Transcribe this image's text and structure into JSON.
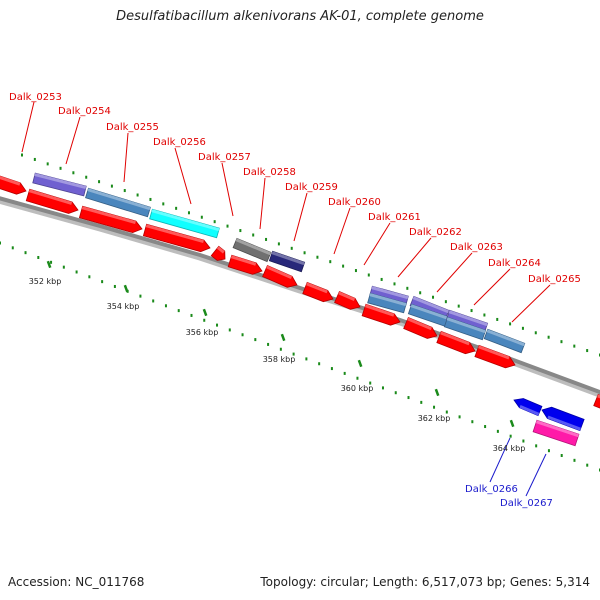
{
  "title": "Desulfatibacillum alkenivorans AK-01, complete genome",
  "footer": {
    "accession": "Accession: NC_011768",
    "summary": "Topology: circular; Length: 6,517,073 bp; Genes: 5,314"
  },
  "ticks": [
    "352 kbp",
    "354 kbp",
    "356 kbp",
    "358 kbp",
    "360 kbp",
    "362 kbp",
    "364 kbp"
  ],
  "gene_labels_red": [
    "Dalk_0253",
    "Dalk_0254",
    "Dalk_0255",
    "Dalk_0256",
    "Dalk_0257",
    "Dalk_0258",
    "Dalk_0259",
    "Dalk_0260",
    "Dalk_0261",
    "Dalk_0262",
    "Dalk_0263",
    "Dalk_0264",
    "Dalk_0265"
  ],
  "gene_labels_blue": [
    "Dalk_0266",
    "Dalk_0267"
  ],
  "colors": {
    "forward_cds": "#ff0000",
    "reverse_cds": "#0000ee",
    "label_red": "#e00000",
    "label_blue": "#1a1acc",
    "backbone": "#888888",
    "dots": "#1a8a1a",
    "purple": "#7060d0",
    "steelblue": "#4a86bd",
    "cyan": "#10ffff",
    "gray": "#707070",
    "navy": "#28287a",
    "magenta": "#ff1aa8"
  }
}
